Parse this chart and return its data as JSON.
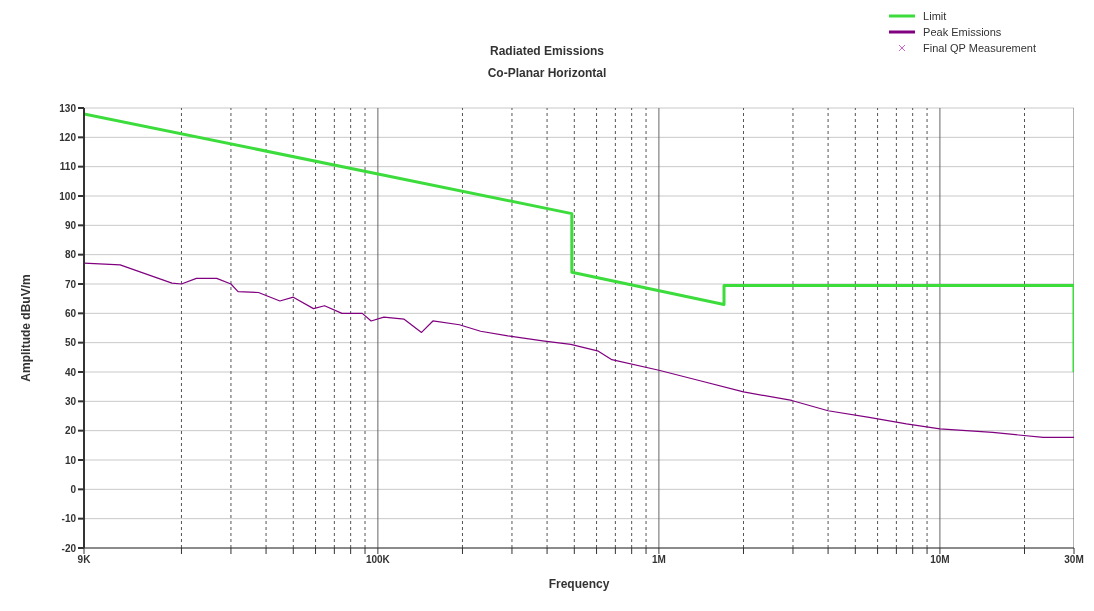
{
  "chart_data": {
    "type": "line",
    "title": "Radiated Emissions",
    "subtitle": "Co-Planar Horizontal",
    "xlabel": "Frequency",
    "ylabel": "Amplitude dBuV/m",
    "log": "x",
    "grid": true,
    "legend": "top right",
    "line_style": "solid",
    "marker": "none",
    "xlim": [
      9000,
      30000000
    ],
    "xticks": [
      {
        "value": 9000,
        "label": "9K"
      },
      {
        "value": 20000,
        "label": null
      },
      {
        "value": 30000,
        "label": null
      },
      {
        "value": 40000,
        "label": null
      },
      {
        "value": 50000,
        "label": null
      },
      {
        "value": 60000,
        "label": null
      },
      {
        "value": 70000,
        "label": null
      },
      {
        "value": 80000,
        "label": null
      },
      {
        "value": 90000,
        "label": null
      },
      {
        "value": 100000,
        "label": "100K"
      },
      {
        "value": 200000,
        "label": null
      },
      {
        "value": 300000,
        "label": null
      },
      {
        "value": 400000,
        "label": null
      },
      {
        "value": 500000,
        "label": null
      },
      {
        "value": 600000,
        "label": null
      },
      {
        "value": 700000,
        "label": null
      },
      {
        "value": 800000,
        "label": null
      },
      {
        "value": 900000,
        "label": null
      },
      {
        "value": 1000000,
        "label": "1M"
      },
      {
        "value": 2000000,
        "label": null
      },
      {
        "value": 3000000,
        "label": null
      },
      {
        "value": 4000000,
        "label": null
      },
      {
        "value": 5000000,
        "label": null
      },
      {
        "value": 6000000,
        "label": null
      },
      {
        "value": 7000000,
        "label": null
      },
      {
        "value": 8000000,
        "label": null
      },
      {
        "value": 9000000,
        "label": null
      },
      {
        "value": 10000000,
        "label": "10M"
      },
      {
        "value": 20000000,
        "label": null
      },
      {
        "value": 30000000,
        "label": "30M"
      }
    ],
    "ylim": [
      -20,
      130
    ],
    "yticks": [
      -20,
      -10,
      0,
      10,
      20,
      30,
      40,
      50,
      60,
      70,
      80,
      90,
      100,
      110,
      120,
      130
    ],
    "series": [
      {
        "name": "Limit",
        "color": "#3ddc3d",
        "x": [
          9000,
          490000,
          490000,
          1705000,
          1705000,
          30000000,
          30000000
        ],
        "values": [
          128,
          94,
          74,
          63,
          69.5,
          69.5,
          40
        ]
      },
      {
        "name": "Peak Emissions",
        "color": "#800080",
        "x": [
          9000,
          12100,
          18500,
          20000,
          22600,
          26700,
          30000,
          31800,
          37600,
          44800,
          50000,
          59000,
          64600,
          74500,
          88000,
          94600,
          105000,
          124000,
          143000,
          157000,
          195000,
          232000,
          290000,
          386000,
          486000,
          609000,
          680000,
          1000000,
          1390000,
          2000000,
          2970000,
          4000000,
          5600000,
          7600000,
          10000000,
          15400000,
          23300000,
          30000000
        ],
        "values": [
          77.1,
          76.5,
          70.3,
          70,
          71.9,
          71.9,
          70,
          67.4,
          67.1,
          64.2,
          65.5,
          61.6,
          62.6,
          60,
          60,
          57.4,
          58.7,
          58,
          53.5,
          57.4,
          56.1,
          53.9,
          52.3,
          50.6,
          49.4,
          47.1,
          44.2,
          40.6,
          37.1,
          33.2,
          30.3,
          26.8,
          24.5,
          22.3,
          20.6,
          19.4,
          17.7,
          17.7
        ]
      },
      {
        "name": "Final QP Measurement",
        "type": "scatter",
        "color": "#cc66cc",
        "marker": "cross"
      }
    ]
  }
}
